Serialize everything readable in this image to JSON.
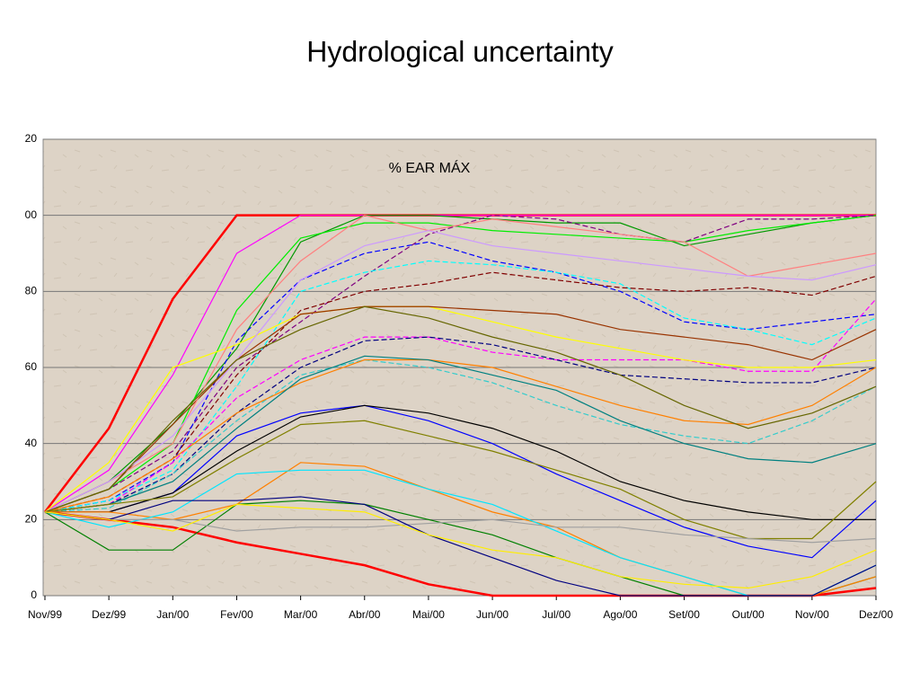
{
  "chart_data": {
    "type": "line",
    "title": "Hydrological uncertainty",
    "subtitle": "% EAR MÁX",
    "categories": [
      "Nov/99",
      "Dez/99",
      "Jan/00",
      "Fev/00",
      "Mar/00",
      "Abr/00",
      "Mai/00",
      "Jun/00",
      "Jul/00",
      "Ago/00",
      "Set/00",
      "Out/00",
      "Nov/00",
      "Dez/00"
    ],
    "ylim": [
      0,
      120
    ],
    "yticks": [
      0,
      {
        "value": 20,
        "label": "20"
      },
      {
        "value": 40,
        "label": "40"
      },
      {
        "value": 60,
        "label": "60"
      },
      {
        "value": 80,
        "label": "80"
      },
      {
        "value": 100,
        "label": "00"
      },
      {
        "value": 120,
        "label": "20"
      }
    ],
    "grid": true,
    "series": [
      {
        "color": "#ff0000",
        "width": 2.5,
        "values": [
          22,
          44,
          78,
          100,
          100,
          100,
          100,
          100,
          100,
          100,
          100,
          100,
          100,
          100
        ]
      },
      {
        "color": "#ff0000",
        "width": 2.5,
        "values": [
          22,
          20,
          18,
          14,
          11,
          8,
          3,
          0,
          0,
          0,
          0,
          0,
          0,
          2
        ]
      },
      {
        "color": "#ff00ff",
        "values": [
          22,
          33,
          58,
          90,
          100,
          100,
          100,
          100,
          100,
          100,
          100,
          100,
          100,
          100
        ]
      },
      {
        "color": "#009900",
        "values": [
          22,
          30,
          45,
          65,
          93,
          100,
          100,
          99,
          98,
          98,
          92,
          95,
          98,
          100
        ]
      },
      {
        "color": "#00ee00",
        "values": [
          22,
          28,
          40,
          75,
          94,
          98,
          98,
          96,
          95,
          94,
          93,
          96,
          98,
          100
        ]
      },
      {
        "color": "#800080",
        "dashed": true,
        "values": [
          22,
          28,
          38,
          60,
          72,
          84,
          95,
          100,
          99,
          95,
          93,
          99,
          99,
          100
        ]
      },
      {
        "color": "#0000ff",
        "dashed": true,
        "values": [
          22,
          25,
          35,
          67,
          83,
          90,
          93,
          88,
          85,
          80,
          72,
          70,
          72,
          74
        ]
      },
      {
        "color": "#00ffff",
        "dashed": true,
        "values": [
          22,
          25,
          33,
          55,
          80,
          85,
          88,
          87,
          85,
          82,
          73,
          70,
          66,
          73
        ]
      },
      {
        "color": "#800000",
        "dashed": true,
        "values": [
          22,
          26,
          36,
          58,
          75,
          80,
          82,
          85,
          83,
          81,
          80,
          81,
          79,
          84
        ]
      },
      {
        "color": "#ff00ff",
        "dashed": true,
        "values": [
          22,
          24,
          35,
          52,
          62,
          68,
          68,
          64,
          62,
          62,
          62,
          59,
          59,
          78
        ]
      },
      {
        "color": "#000080",
        "dashed": true,
        "values": [
          22,
          24,
          32,
          48,
          60,
          67,
          68,
          66,
          62,
          58,
          57,
          56,
          56,
          60
        ]
      },
      {
        "color": "#33cccc",
        "dashed": true,
        "values": [
          22,
          23,
          32,
          46,
          58,
          62,
          60,
          56,
          50,
          45,
          42,
          40,
          46,
          55
        ]
      },
      {
        "color": "#ffff00",
        "values": [
          22,
          35,
          60,
          66,
          74,
          76,
          76,
          72,
          68,
          65,
          62,
          60,
          60,
          62
        ]
      },
      {
        "color": "#ff8000",
        "values": [
          22,
          26,
          36,
          48,
          56,
          62,
          62,
          60,
          55,
          50,
          46,
          45,
          50,
          60
        ]
      },
      {
        "color": "#008080",
        "values": [
          22,
          24,
          30,
          44,
          57,
          63,
          62,
          58,
          54,
          46,
          40,
          36,
          35,
          40
        ]
      },
      {
        "color": "#0000ff",
        "values": [
          22,
          22,
          27,
          42,
          48,
          50,
          46,
          40,
          32,
          25,
          18,
          13,
          10,
          25
        ]
      },
      {
        "color": "#000000",
        "values": [
          22,
          22,
          27,
          38,
          47,
          50,
          48,
          44,
          38,
          30,
          25,
          22,
          20,
          20
        ]
      },
      {
        "color": "#808000",
        "values": [
          22,
          24,
          26,
          36,
          45,
          46,
          42,
          38,
          33,
          28,
          20,
          15,
          15,
          30
        ]
      },
      {
        "color": "#008000",
        "values": [
          22,
          12,
          12,
          24,
          25,
          24,
          20,
          16,
          10,
          5,
          0,
          0,
          0,
          5
        ]
      },
      {
        "color": "#ff8000",
        "values": [
          22,
          22,
          20,
          24,
          35,
          34,
          28,
          22,
          18,
          10,
          5,
          0,
          0,
          5
        ]
      },
      {
        "color": "#00e5ff",
        "values": [
          22,
          18,
          22,
          32,
          33,
          33,
          28,
          24,
          17,
          10,
          5,
          0,
          0,
          8
        ]
      },
      {
        "color": "#a0a0a0",
        "values": [
          22,
          20,
          20,
          17,
          18,
          18,
          19,
          20,
          18,
          18,
          16,
          15,
          14,
          15
        ]
      },
      {
        "color": "#000080",
        "values": [
          22,
          20,
          25,
          25,
          26,
          24,
          16,
          10,
          4,
          0,
          0,
          0,
          0,
          8
        ]
      },
      {
        "color": "#993300",
        "values": [
          22,
          28,
          45,
          62,
          74,
          76,
          76,
          75,
          74,
          70,
          68,
          66,
          62,
          70
        ]
      },
      {
        "color": "#ff8080",
        "values": [
          22,
          30,
          40,
          70,
          88,
          100,
          96,
          99,
          97,
          95,
          93,
          84,
          87,
          90
        ]
      },
      {
        "color": "#cc99ff",
        "values": [
          22,
          30,
          42,
          62,
          83,
          92,
          96,
          92,
          90,
          88,
          86,
          84,
          83,
          87
        ]
      },
      {
        "color": "#666600",
        "values": [
          22,
          28,
          46,
          62,
          70,
          76,
          73,
          68,
          64,
          58,
          50,
          44,
          48,
          55
        ]
      },
      {
        "color": "#ffee00",
        "values": [
          22,
          20,
          17,
          24,
          23,
          22,
          16,
          12,
          10,
          5,
          3,
          2,
          5,
          12
        ]
      }
    ]
  }
}
